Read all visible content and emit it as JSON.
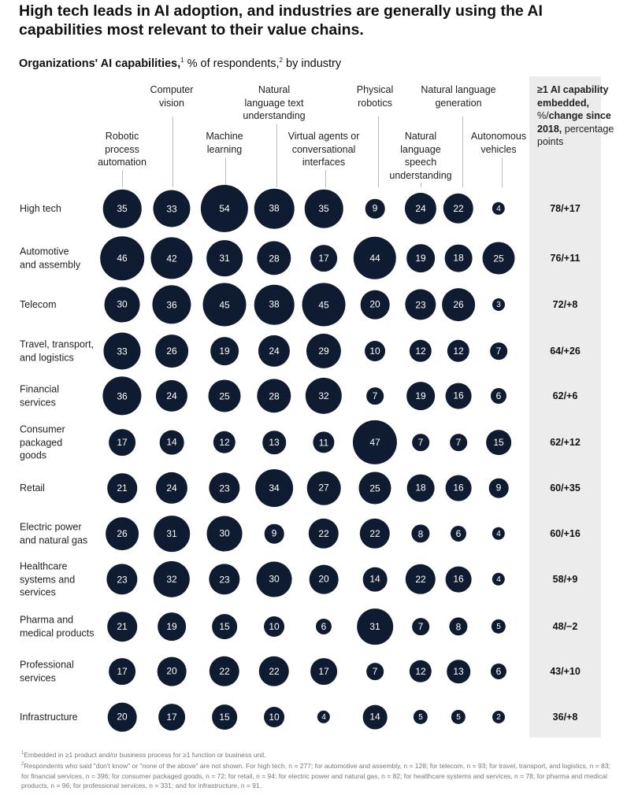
{
  "title": "High tech leads in AI adoption, and industries are generally using the AI capabilities most relevant to their value chains.",
  "subtitle": {
    "bold": "Organizations' AI capabilities,",
    "sup1": "1",
    "rest": " % of respondents,",
    "sup2": "2",
    "rest2": " by industry"
  },
  "chart_data": {
    "type": "bubble-table",
    "columns": [
      "Robotic process automation",
      "Computer vision",
      "Machine learning",
      "Natural language text understanding",
      "Virtual agents or conversational interfaces",
      "Physical robotics",
      "Natural language speech understanding",
      "Natural language generation",
      "Autonomous vehicles"
    ],
    "total_header": {
      "bold1": "≥1 AI capability embedded,",
      "mid": " %/",
      "bold2": "change since 2018,",
      "rest": " percentage points"
    },
    "rows": [
      {
        "industry": "High tech",
        "values": [
          35,
          33,
          54,
          38,
          35,
          9,
          24,
          22,
          4
        ],
        "total": "78/+17"
      },
      {
        "industry": "Automotive and assembly",
        "values": [
          46,
          42,
          31,
          28,
          17,
          44,
          19,
          18,
          25
        ],
        "total": "76/+11"
      },
      {
        "industry": "Telecom",
        "values": [
          30,
          36,
          45,
          38,
          45,
          20,
          23,
          26,
          3
        ],
        "total": "72/+8"
      },
      {
        "industry": "Travel, transport, and logistics",
        "values": [
          33,
          26,
          19,
          24,
          29,
          10,
          12,
          12,
          7
        ],
        "total": "64/+26"
      },
      {
        "industry": "Financial services",
        "values": [
          36,
          24,
          25,
          28,
          32,
          7,
          19,
          16,
          6
        ],
        "total": "62/+6"
      },
      {
        "industry": "Consumer packaged goods",
        "values": [
          17,
          14,
          12,
          13,
          11,
          47,
          7,
          7,
          15
        ],
        "total": "62/+12"
      },
      {
        "industry": "Retail",
        "values": [
          21,
          24,
          23,
          34,
          27,
          25,
          18,
          16,
          9
        ],
        "total": "60/+35"
      },
      {
        "industry": "Electric power and natural gas",
        "values": [
          26,
          31,
          30,
          9,
          22,
          22,
          8,
          6,
          4
        ],
        "total": "60/+16"
      },
      {
        "industry": "Healthcare systems and services",
        "values": [
          23,
          32,
          23,
          30,
          20,
          14,
          22,
          16,
          4
        ],
        "total": "58/+9"
      },
      {
        "industry": "Pharma and medical products",
        "values": [
          21,
          19,
          15,
          10,
          6,
          31,
          7,
          8,
          5
        ],
        "total": "48/−2"
      },
      {
        "industry": "Professional services",
        "values": [
          17,
          20,
          22,
          22,
          17,
          7,
          12,
          13,
          6
        ],
        "total": "43/+10"
      },
      {
        "industry": "Infrastructure",
        "values": [
          20,
          17,
          15,
          10,
          4,
          14,
          5,
          5,
          2
        ],
        "total": "36/+8"
      }
    ],
    "bubble_color": "#0f1b30",
    "panel_color": "#ececec"
  },
  "footnotes": [
    {
      "sup": "1",
      "text": "Embedded in ≥1 product and/or business process for ≥1 function or business unit."
    },
    {
      "sup": "2",
      "text": "Respondents who said \"don't know\" or \"none of the above\" are not shown. For high tech, n = 277; for automotive and assembly, n = 128; for telecom, n = 93; for travel, transport, and logistics, n = 83; for financial services, n = 396; for consumer packaged goods, n = 72; for retail, n = 94; for electric power and natural gas, n = 82; for healthcare systems and services, n = 78; for pharma and medical products, n = 96; for professional services, n = 331; and for infrastructure, n = 91."
    }
  ]
}
